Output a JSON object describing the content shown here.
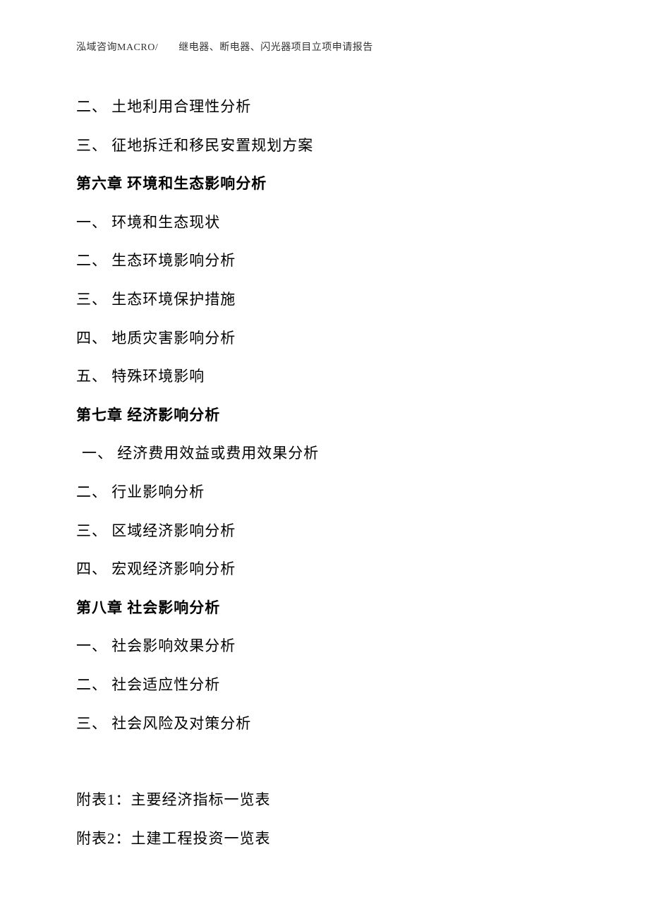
{
  "header": "泓域咨询MACRO/　　继电器、断电器、闪光器项目立项申请报告",
  "items": [
    {
      "type": "item",
      "text": "二、 土地利用合理性分析"
    },
    {
      "type": "item",
      "text": "三、 征地拆迁和移民安置规划方案"
    },
    {
      "type": "chapter",
      "text": "第六章 环境和生态影响分析"
    },
    {
      "type": "item",
      "text": "一、 环境和生态现状"
    },
    {
      "type": "item",
      "text": "二、 生态环境影响分析"
    },
    {
      "type": "item",
      "text": "三、 生态环境保护措施"
    },
    {
      "type": "item",
      "text": "四、 地质灾害影响分析"
    },
    {
      "type": "item",
      "text": "五、 特殊环境影响"
    },
    {
      "type": "chapter",
      "text": "第七章 经济影响分析"
    },
    {
      "type": "item-indent",
      "text": "一、 经济费用效益或费用效果分析"
    },
    {
      "type": "item",
      "text": "二、 行业影响分析"
    },
    {
      "type": "item",
      "text": "三、 区域经济影响分析"
    },
    {
      "type": "item",
      "text": "四、 宏观经济影响分析"
    },
    {
      "type": "chapter",
      "text": "第八章 社会影响分析"
    },
    {
      "type": "item",
      "text": "一、 社会影响效果分析"
    },
    {
      "type": "item",
      "text": "二、 社会适应性分析"
    },
    {
      "type": "item",
      "text": "三、 社会风险及对策分析"
    }
  ],
  "appendices": [
    {
      "text": "附表1：主要经济指标一览表"
    },
    {
      "text": "附表2：土建工程投资一览表"
    }
  ]
}
